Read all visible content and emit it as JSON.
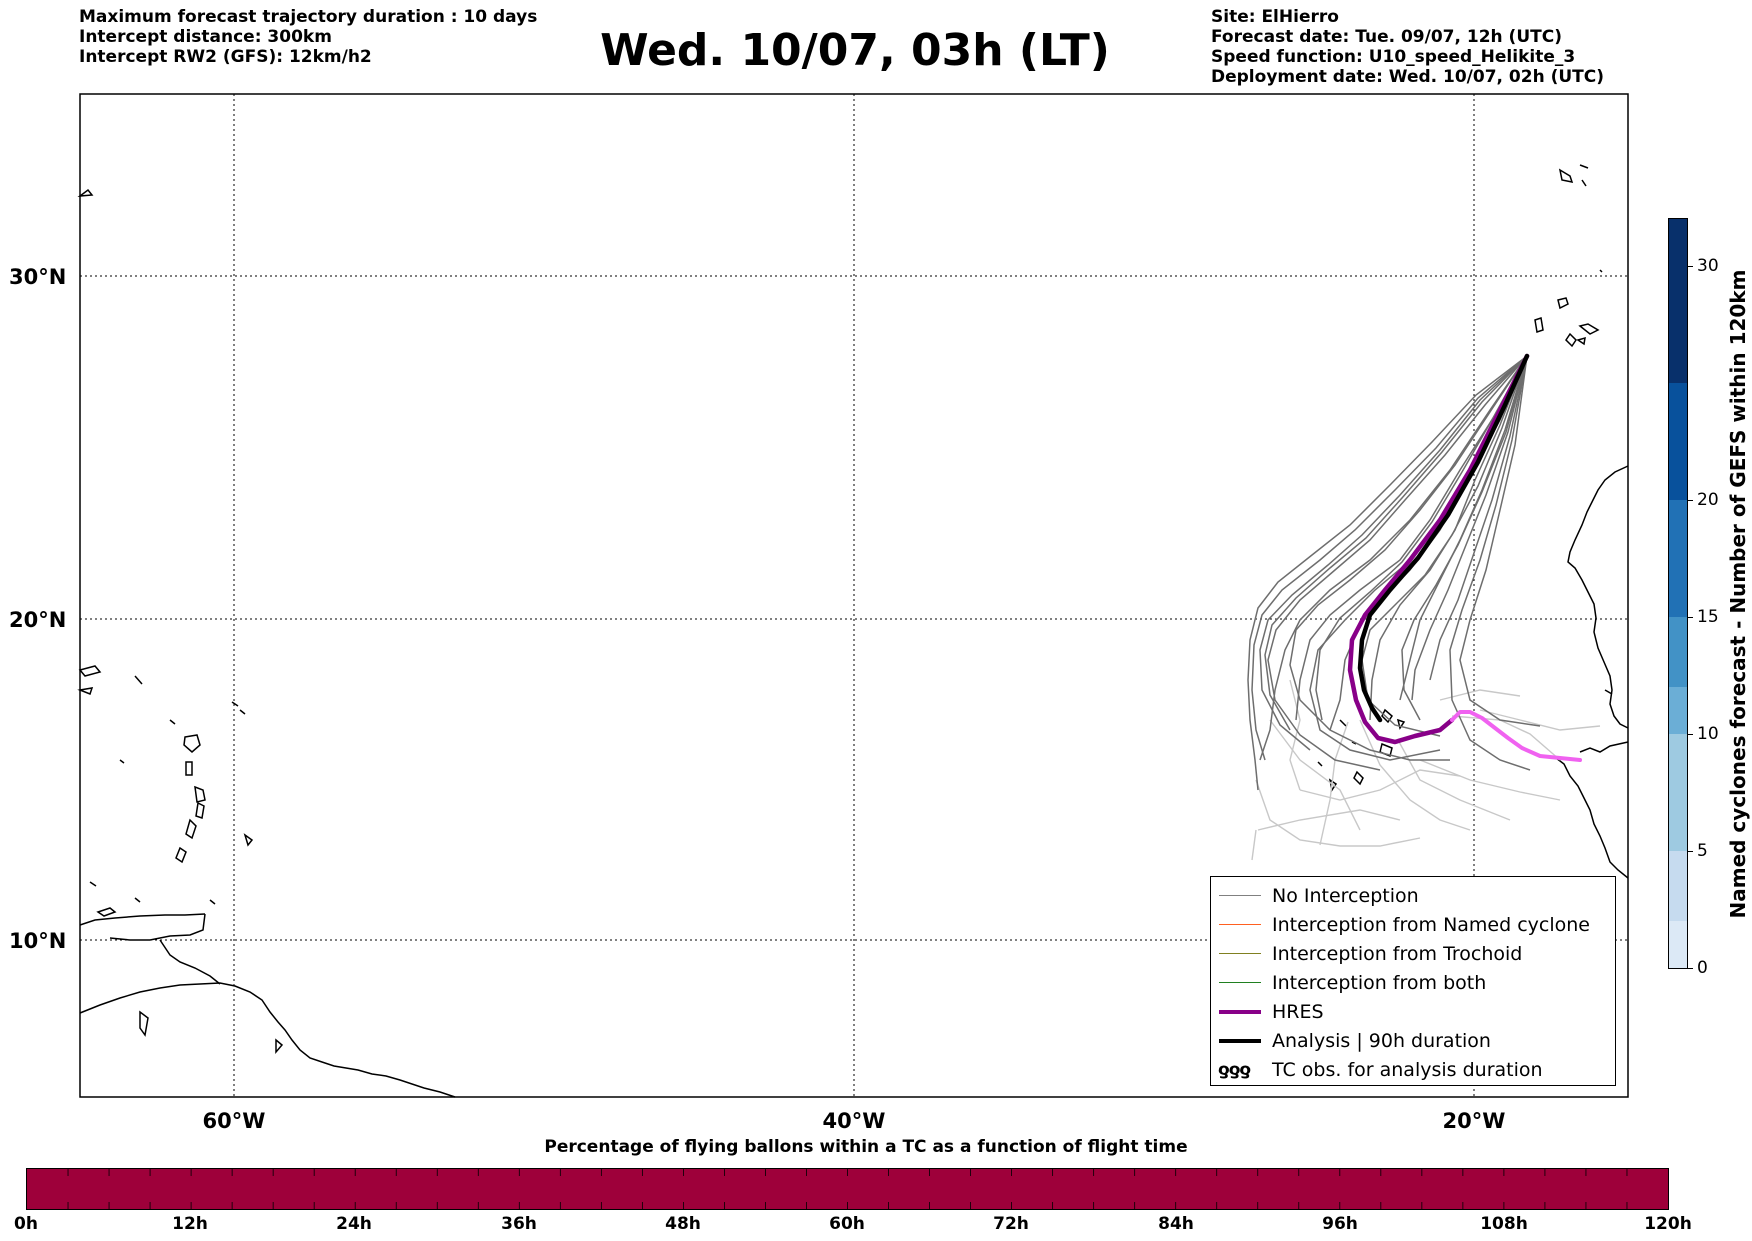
{
  "header": {
    "left_lines": [
      "Maximum forecast trajectory duration : 10 days",
      "Intercept distance: 300km",
      "Intercept RW2 (GFS):  12km/h2"
    ],
    "title": "Wed. 10/07, 03h (LT)",
    "right_lines": [
      "Site: ElHierro",
      "Forecast date: Tue. 09/07, 12h (UTC)",
      "Speed function: U10_speed_Helikite_3",
      "Deployment date: Wed. 10/07, 02h (UTC)"
    ]
  },
  "map": {
    "lat_labels": [
      "30°N",
      "20°N",
      "10°N"
    ],
    "lon_labels": [
      "60°W",
      "40°W",
      "20°W"
    ],
    "lat_range": [
      5,
      35.3
    ],
    "lon_range": [
      -65,
      -15
    ],
    "grid": "dotted"
  },
  "legend": {
    "items": [
      {
        "label": "No Interception",
        "color": "#808080",
        "style": "thin"
      },
      {
        "label": "Interception from Named cyclone",
        "color": "#ff6020",
        "style": "thin"
      },
      {
        "label": "Interception from Trochoid",
        "color": "#808020",
        "style": "thin"
      },
      {
        "label": "Interception from both",
        "color": "#208020",
        "style": "thin"
      },
      {
        "label": "HRES",
        "color": "#880088",
        "style": "thick"
      },
      {
        "label": "Analysis | 90h duration",
        "color": "#000000",
        "style": "thick"
      },
      {
        "label": "TC obs. for analysis duration",
        "color": "#000000",
        "style": "symbol",
        "symbol": "ƍƍƍ"
      }
    ]
  },
  "timebar": {
    "title": "Percentage of flying ballons within a TC as a function of flight time",
    "color": "#9e003a",
    "ticks": [
      "0h",
      "12h",
      "24h",
      "36h",
      "48h",
      "60h",
      "72h",
      "84h",
      "96h",
      "108h",
      "120h"
    ]
  },
  "colorbar": {
    "title": "Named cyclones forecast - Number of GEFS within 120km",
    "ticks": [
      "0",
      "5",
      "10",
      "15",
      "20",
      "30"
    ],
    "tick_values": [
      0,
      5,
      10,
      15,
      20,
      30
    ],
    "max": 32,
    "colors": [
      "#dce9f6",
      "#c6dbef",
      "#9ecae1",
      "#6baed6",
      "#4292c6",
      "#2171b5",
      "#08519c",
      "#08306b"
    ]
  }
}
